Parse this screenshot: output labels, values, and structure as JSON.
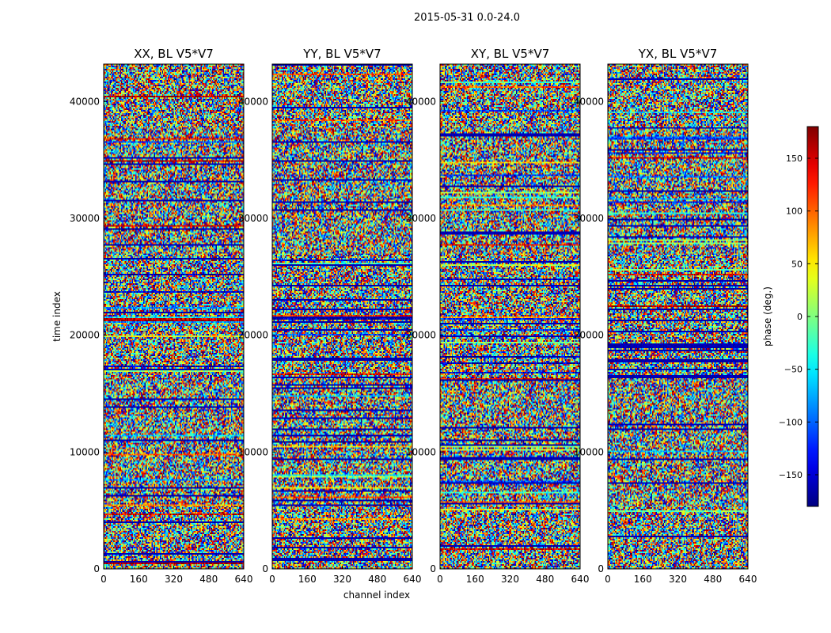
{
  "chart_data": {
    "type": "heatmap",
    "suptitle": "2015-05-31 0.0-24.0",
    "xlabel": "channel index",
    "ylabel": "time index",
    "xlim": [
      0,
      640
    ],
    "ylim": [
      0,
      43200
    ],
    "xticks": [
      0,
      160,
      320,
      480,
      640
    ],
    "yticks": [
      0,
      10000,
      20000,
      30000,
      40000
    ],
    "panels": [
      {
        "title": "XX, BL V5*V7"
      },
      {
        "title": "YY, BL V5*V7"
      },
      {
        "title": "XY, BL V5*V7"
      },
      {
        "title": "YX, BL V5*V7"
      }
    ],
    "colorbar": {
      "label": "phase (deg.)",
      "range": [
        -180,
        180
      ],
      "ticks": [
        150,
        100,
        50,
        0,
        -50,
        -100,
        -150
      ],
      "ticklabels": [
        "150",
        "100",
        "50",
        "0",
        "−50",
        "−100",
        "−150"
      ],
      "colormap": "jet"
    }
  }
}
